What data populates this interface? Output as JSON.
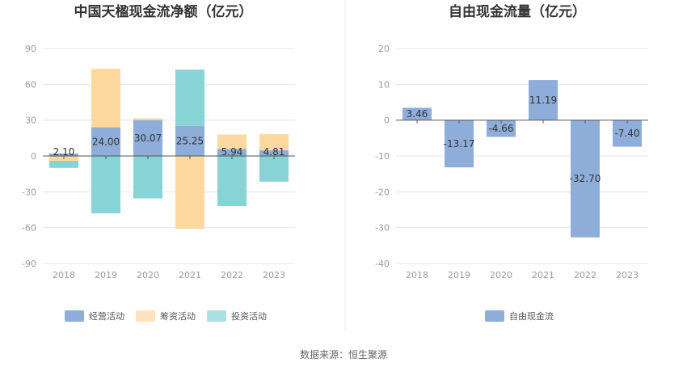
{
  "footer": {
    "source": "数据来源：恒生聚源"
  },
  "colors": {
    "operating": "#8eadd9",
    "financing": "#fdd9a0",
    "investing": "#87d3d6",
    "free_cash_flow": "#8eadd9",
    "grid": "#e6e6e6",
    "axis": "#555555"
  },
  "chart_data": [
    {
      "type": "bar",
      "stacked": true,
      "title": "中国天楹现金流净额（亿元）",
      "categories": [
        "2018",
        "2019",
        "2020",
        "2021",
        "2022",
        "2023"
      ],
      "yticks": [
        "90",
        "60",
        "30",
        "0",
        "-30",
        "-60",
        "-90"
      ],
      "ylim": [
        -90,
        90
      ],
      "grid": true,
      "legend_position": "bottom",
      "series": [
        {
          "name": "经营活动",
          "values": [
            2.1,
            24.0,
            30.07,
            25.25,
            5.94,
            4.81
          ]
        },
        {
          "name": "筹资活动",
          "values": [
            -4.0,
            49.0,
            1.5,
            -61.0,
            12.0,
            13.5
          ]
        },
        {
          "name": "投资活动",
          "values": [
            -6.0,
            -48.0,
            -35.5,
            47.0,
            -42.0,
            -21.5
          ]
        }
      ],
      "data_labels": [
        "2.10",
        "24.00",
        "30.07",
        "25.25",
        "5.94",
        "4.81"
      ]
    },
    {
      "type": "bar",
      "title": "自由现金流量（亿元）",
      "categories": [
        "2018",
        "2019",
        "2020",
        "2021",
        "2022",
        "2023"
      ],
      "yticks": [
        "20",
        "10",
        "0",
        "-10",
        "-20",
        "-30",
        "-40"
      ],
      "ylim": [
        -40,
        20
      ],
      "grid": true,
      "legend_position": "bottom",
      "series": [
        {
          "name": "自由现金流",
          "values": [
            3.46,
            -13.17,
            -4.66,
            11.19,
            -32.7,
            -7.4
          ]
        }
      ],
      "data_labels": [
        "3.46",
        "-13.17",
        "-4.66",
        "11.19",
        "-32.70",
        "-7.40"
      ]
    }
  ]
}
